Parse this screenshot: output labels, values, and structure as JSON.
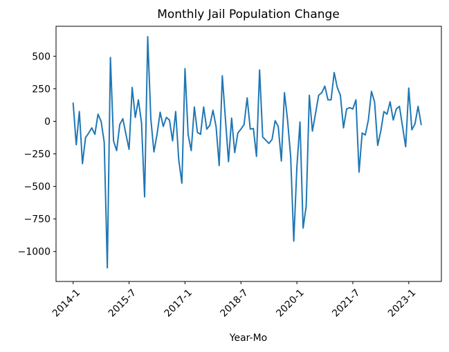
{
  "chart_data": {
    "type": "line",
    "title": "Monthly Jail Population Change",
    "xlabel": "Year-Mo",
    "ylabel": "",
    "x_ticks": [
      {
        "index": 0,
        "label": "2014-1"
      },
      {
        "index": 18,
        "label": "2015-7"
      },
      {
        "index": 36,
        "label": "2017-1"
      },
      {
        "index": 54,
        "label": "2018-7"
      },
      {
        "index": 72,
        "label": "2020-1"
      },
      {
        "index": 90,
        "label": "2021-7"
      },
      {
        "index": 108,
        "label": "2023-1"
      }
    ],
    "y_ticks": [
      500,
      250,
      0,
      -250,
      -500,
      -750,
      -1000
    ],
    "y_tick_labels": [
      "500",
      "250",
      "0",
      "−250",
      "−500",
      "−750",
      "−1000"
    ],
    "xlim": [
      -5.5,
      118.5
    ],
    "ylim": [
      -1230,
      730
    ],
    "grid": false,
    "legend": "none",
    "series": [
      {
        "color": "#1f77b4",
        "x_start": "2014-1",
        "values": [
          140,
          -180,
          75,
          -325,
          -125,
          -90,
          -50,
          -100,
          55,
          0,
          -160,
          -1125,
          490,
          -150,
          -225,
          -25,
          20,
          -100,
          -215,
          260,
          30,
          165,
          -10,
          -580,
          650,
          20,
          -235,
          -100,
          70,
          -40,
          30,
          10,
          -150,
          75,
          -300,
          -475,
          405,
          -100,
          -225,
          110,
          -85,
          -100,
          110,
          -60,
          -30,
          85,
          -40,
          -340,
          350,
          20,
          -310,
          25,
          -240,
          -90,
          -60,
          -25,
          180,
          -60,
          -55,
          -270,
          395,
          -120,
          -145,
          -170,
          -140,
          5,
          -40,
          -305,
          220,
          10,
          -270,
          -920,
          -350,
          -5,
          -820,
          -650,
          200,
          -75,
          60,
          200,
          220,
          270,
          165,
          165,
          375,
          260,
          200,
          -50,
          95,
          105,
          95,
          165,
          -390,
          -90,
          -105,
          10,
          230,
          150,
          -185,
          -75,
          75,
          55,
          150,
          10,
          95,
          115,
          -40,
          -195,
          255,
          -65,
          -20,
          115,
          -25
        ]
      }
    ]
  }
}
